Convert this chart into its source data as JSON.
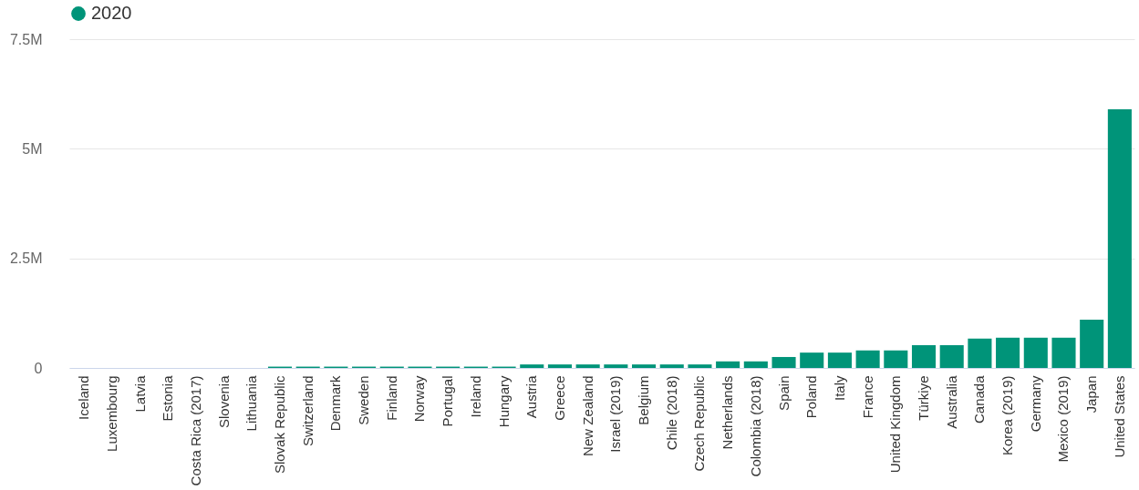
{
  "chart_data": {
    "type": "bar",
    "categories": [
      "Iceland",
      "Luxembourg",
      "Latvia",
      "Estonia",
      "Costa Rica (2017)",
      "Slovenia",
      "Lithuania",
      "Slovak Republic",
      "Switzerland",
      "Denmark",
      "Sweden",
      "Finland",
      "Norway",
      "Portugal",
      "Ireland",
      "Hungary",
      "Austria",
      "Greece",
      "New Zealand",
      "Israel (2019)",
      "Belgium",
      "Chile (2018)",
      "Czech Republic",
      "Netherlands",
      "Colombia (2018)",
      "Spain",
      "Poland",
      "Italy",
      "France",
      "United Kingdom",
      "Türkiye",
      "Australia",
      "Canada",
      "Korea (2019)",
      "Germany",
      "Mexico (2019)",
      "Japan",
      "United States"
    ],
    "series": [
      {
        "name": "2020",
        "color": "#009479",
        "values": [
          null,
          null,
          null,
          null,
          null,
          null,
          null,
          30000,
          30000,
          30000,
          30000,
          30000,
          30000,
          30000,
          30000,
          30000,
          80000,
          80000,
          80000,
          80000,
          80000,
          80000,
          80000,
          150000,
          150000,
          250000,
          350000,
          350000,
          400000,
          400000,
          520000,
          520000,
          670000,
          690000,
          690000,
          690000,
          1100000,
          5900000
        ]
      }
    ],
    "ylim": [
      0,
      7500000
    ],
    "yticks": [
      {
        "value": 0,
        "label": "0"
      },
      {
        "value": 2500000,
        "label": "2.5M"
      },
      {
        "value": 5000000,
        "label": "5M"
      },
      {
        "value": 7500000,
        "label": "7.5M"
      }
    ],
    "grid": "y",
    "legend": "top"
  }
}
